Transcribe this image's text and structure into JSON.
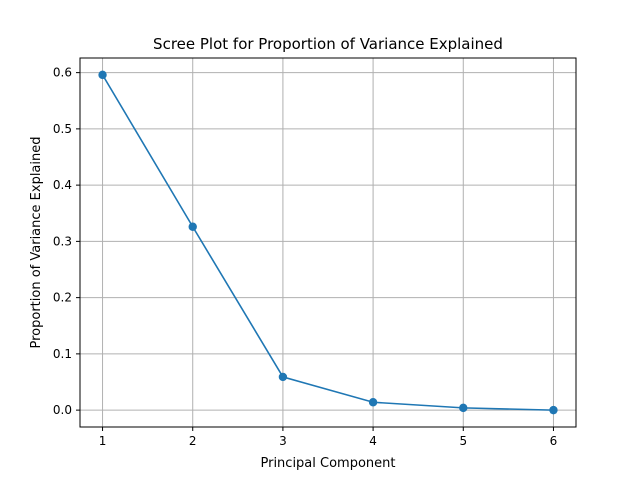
{
  "chart_data": {
    "type": "line",
    "title": "Scree Plot for Proportion of Variance Explained",
    "xlabel": "Principal Component",
    "ylabel": "Proportion of Variance Explained",
    "x": [
      1,
      2,
      3,
      4,
      5,
      6
    ],
    "series": [
      {
        "values": [
          0.596,
          0.326,
          0.059,
          0.014,
          0.004,
          0.0
        ],
        "color": "#1f77b4",
        "marker": "circle"
      }
    ],
    "xlim": [
      0.75,
      6.25
    ],
    "ylim": [
      -0.03,
      0.626
    ],
    "xticks": [
      1,
      2,
      3,
      4,
      5,
      6
    ],
    "xtick_labels": [
      "1",
      "2",
      "3",
      "4",
      "5",
      "6"
    ],
    "yticks": [
      0.0,
      0.1,
      0.2,
      0.3,
      0.4,
      0.5,
      0.6
    ],
    "ytick_labels": [
      "0.0",
      "0.1",
      "0.2",
      "0.3",
      "0.4",
      "0.5",
      "0.6"
    ],
    "grid": true
  }
}
